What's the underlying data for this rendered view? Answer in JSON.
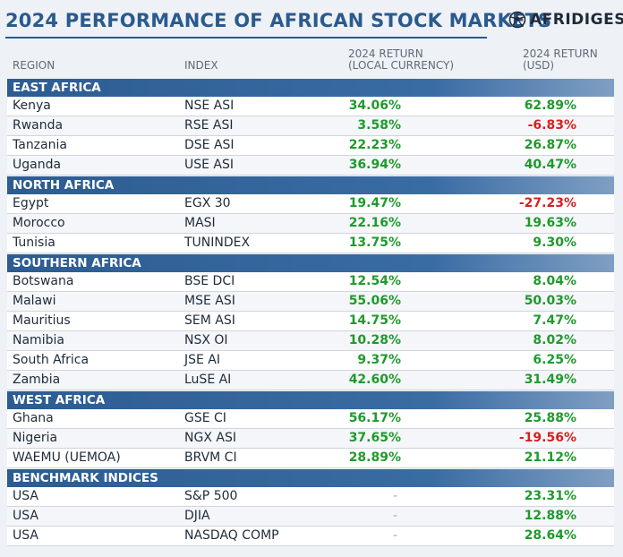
{
  "header": {
    "title": "2024 PERFORMANCE OF AFRICAN STOCK MARKETS",
    "brand": "AFRIDIGEST",
    "brand_icon": "soccer-ball-icon"
  },
  "columns": {
    "region": "REGION",
    "index": "INDEX",
    "local_line1": "2024 RETURN",
    "local_line2": "(LOCAL CURRENCY)",
    "usd_line1": "2024 RETURN",
    "usd_line2": "(USD)"
  },
  "colors": {
    "positive": "#1e9a2c",
    "negative": "#d62020",
    "section_bg": "#2c5c91",
    "title": "#2a5a8e"
  },
  "sections": [
    {
      "name": "EAST AFRICA",
      "rows": [
        {
          "region": "Kenya",
          "index": "NSE ASI",
          "local": "34.06%",
          "usd": "62.89%"
        },
        {
          "region": "Rwanda",
          "index": "RSE ASI",
          "local": "3.58%",
          "usd": "-6.83%"
        },
        {
          "region": "Tanzania",
          "index": "DSE ASI",
          "local": "22.23%",
          "usd": "26.87%"
        },
        {
          "region": "Uganda",
          "index": "USE ASI",
          "local": "36.94%",
          "usd": "40.47%"
        }
      ]
    },
    {
      "name": "NORTH AFRICA",
      "rows": [
        {
          "region": "Egypt",
          "index": "EGX 30",
          "local": "19.47%",
          "usd": "-27.23%"
        },
        {
          "region": "Morocco",
          "index": "MASI",
          "local": "22.16%",
          "usd": "19.63%"
        },
        {
          "region": "Tunisia",
          "index": "TUNINDEX",
          "local": "13.75%",
          "usd": "9.30%"
        }
      ]
    },
    {
      "name": "SOUTHERN AFRICA",
      "rows": [
        {
          "region": "Botswana",
          "index": "BSE DCI",
          "local": "12.54%",
          "usd": "8.04%"
        },
        {
          "region": "Malawi",
          "index": "MSE ASI",
          "local": "55.06%",
          "usd": "50.03%"
        },
        {
          "region": "Mauritius",
          "index": "SEM ASI",
          "local": "14.75%",
          "usd": "7.47%"
        },
        {
          "region": "Namibia",
          "index": "NSX OI",
          "local": "10.28%",
          "usd": "8.02%"
        },
        {
          "region": "South Africa",
          "index": "JSE AI",
          "local": "9.37%",
          "usd": "6.25%"
        },
        {
          "region": "Zambia",
          "index": "LuSE AI",
          "local": "42.60%",
          "usd": "31.49%"
        }
      ]
    },
    {
      "name": "WEST AFRICA",
      "rows": [
        {
          "region": "Ghana",
          "index": "GSE CI",
          "local": "56.17%",
          "usd": "25.88%"
        },
        {
          "region": "Nigeria",
          "index": "NGX ASI",
          "local": "37.65%",
          "usd": "-19.56%"
        },
        {
          "region": "WAEMU (UEMOA)",
          "index": "BRVM CI",
          "local": "28.89%",
          "usd": "21.12%"
        }
      ]
    },
    {
      "name": "BENCHMARK INDICES",
      "rows": [
        {
          "region": "USA",
          "index": "S&P 500",
          "local": "-",
          "usd": "23.31%"
        },
        {
          "region": "USA",
          "index": "DJIA",
          "local": "-",
          "usd": "12.88%"
        },
        {
          "region": "USA",
          "index": "NASDAQ COMP",
          "local": "-",
          "usd": "28.64%"
        }
      ]
    }
  ]
}
